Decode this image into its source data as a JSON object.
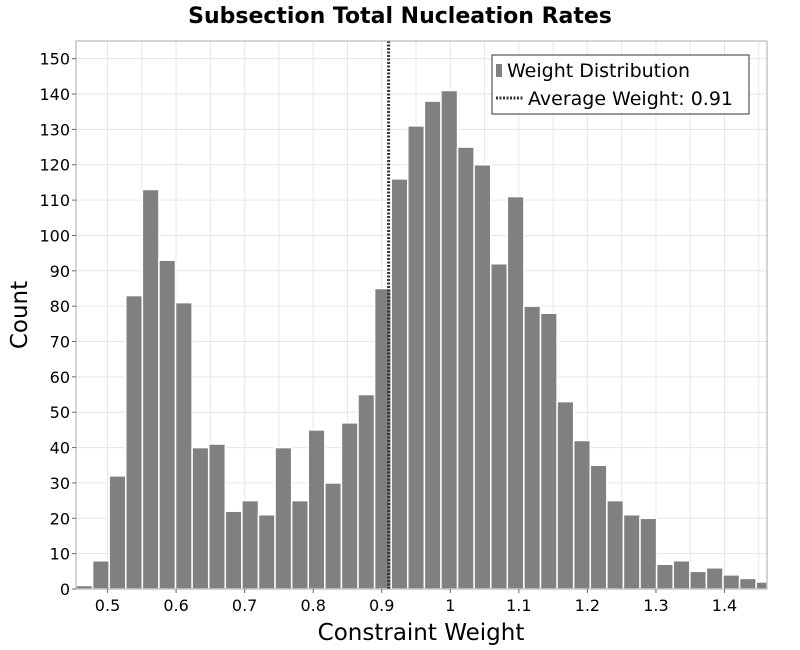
{
  "chart_data": {
    "type": "bar",
    "title": "Subsection Total Nucleation Rates",
    "xlabel": "Constraint Weight",
    "ylabel": "Count",
    "xlim": [
      0.454,
      1.462
    ],
    "ylim": [
      0,
      155
    ],
    "bin_width": 0.02421,
    "bin_starts": [
      0.454,
      0.4782,
      0.5024,
      0.5266,
      0.5508,
      0.575,
      0.5992,
      0.6234,
      0.6476,
      0.6718,
      0.696,
      0.7202,
      0.7444,
      0.7686,
      0.7928,
      0.817,
      0.8412,
      0.8654,
      0.8896,
      0.9138,
      0.938,
      0.9622,
      0.9864,
      1.0106,
      1.0348,
      1.059,
      1.0832,
      1.1074,
      1.1316,
      1.1558,
      1.18,
      1.2042,
      1.2284,
      1.2526,
      1.2768,
      1.301,
      1.3252,
      1.3494,
      1.3736,
      1.3978,
      1.422,
      1.4462
    ],
    "values": [
      1,
      8,
      32,
      83,
      113,
      93,
      81,
      40,
      41,
      22,
      25,
      21,
      40,
      25,
      45,
      30,
      47,
      55,
      85,
      116,
      131,
      138,
      141,
      125,
      120,
      92,
      111,
      80,
      78,
      53,
      42,
      35,
      25,
      21,
      20,
      7,
      8,
      5,
      6,
      4,
      3,
      2
    ],
    "x_ticks": [
      0.5,
      0.6,
      0.7,
      0.8,
      0.9,
      1.0,
      1.1,
      1.2,
      1.3,
      1.4
    ],
    "x_tick_labels": [
      "0.5",
      "0.6",
      "0.7",
      "0.8",
      "0.9",
      "1",
      "1.1",
      "1.2",
      "1.3",
      "1.4"
    ],
    "y_ticks": [
      0,
      10,
      20,
      30,
      40,
      50,
      60,
      70,
      80,
      90,
      100,
      110,
      120,
      130,
      140,
      150
    ],
    "y_tick_labels": [
      "0",
      "10",
      "20",
      "30",
      "40",
      "50",
      "60",
      "70",
      "80",
      "90",
      "100",
      "110",
      "120",
      "130",
      "140",
      "150"
    ],
    "average_line": {
      "x": 0.91,
      "label": "Average Weight: 0.91"
    },
    "legend": {
      "placement": "top-right",
      "entries": [
        "Weight Distribution",
        "Average Weight: 0.91"
      ]
    },
    "grid": true,
    "colors": {
      "bar": "#808080",
      "bar_edge": "#ffffff",
      "grid": "#e6e6e6",
      "average_line": "#333333"
    }
  }
}
